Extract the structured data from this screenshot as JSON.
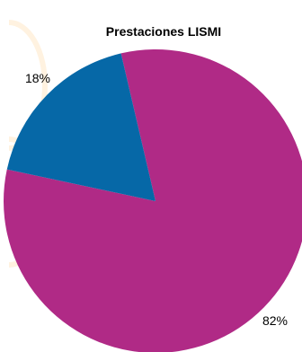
{
  "chart_data": {
    "type": "pie",
    "title": "Prestaciones LISMI",
    "slices": [
      {
        "label": "82%",
        "value": 82,
        "color": "#b02a86"
      },
      {
        "label": "18%",
        "value": 18,
        "color": "#0668a7"
      }
    ],
    "background_decoration_color": "#fff2e0"
  }
}
